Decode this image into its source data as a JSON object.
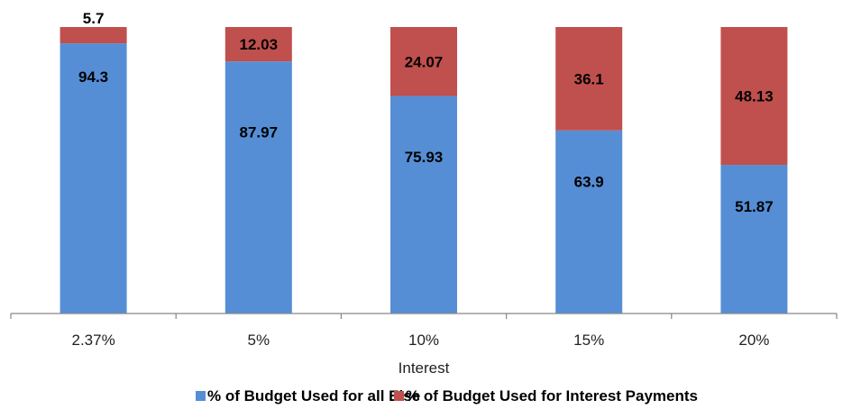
{
  "chart_data": {
    "type": "bar",
    "stacked": true,
    "percent_stacked": true,
    "categories": [
      "2.37%",
      "5%",
      "10%",
      "15%",
      "20%"
    ],
    "series": [
      {
        "name": "% of Budget Used for all Else",
        "values": [
          94.3,
          87.97,
          75.93,
          63.9,
          51.87
        ],
        "color": "#558ed5"
      },
      {
        "name": "% of Budget Used for Interest Payments",
        "values": [
          5.7,
          12.03,
          24.07,
          36.1,
          48.13
        ],
        "color": "#c0504d"
      }
    ],
    "labels": [
      [
        "94.3",
        "87.97",
        "75.93",
        "63.9",
        "51.87"
      ],
      [
        "5.7",
        "12.03",
        "24.07",
        "36.1",
        "48.13"
      ]
    ],
    "xlabel": "Interest",
    "ylabel": "",
    "ylim": [
      0,
      100
    ],
    "grid": false,
    "legend": "bottom"
  }
}
